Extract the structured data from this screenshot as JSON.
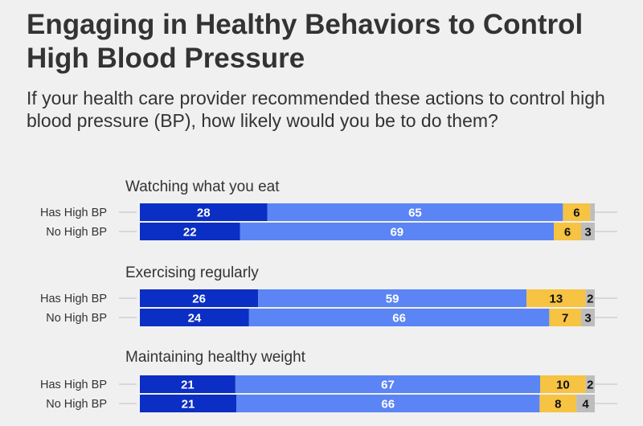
{
  "title": "Engaging in Healthy Behaviors to Control High Blood Pressure",
  "subtitle": "If your health care provider recommended these actions to control high blood pressure (BP), how likely would you be to do them?",
  "chart_data": {
    "type": "bar",
    "orientation": "horizontal",
    "stacked": true,
    "percent": true,
    "segments": [
      {
        "color": "#0b2ec4",
        "label_color": "#ffffff"
      },
      {
        "color": "#5b84f5",
        "label_color": "#ffffff"
      },
      {
        "color": "#f6c342",
        "label_color": "#111111"
      },
      {
        "color": "#bdbdbd",
        "label_color": "#111111"
      }
    ],
    "groups": [
      {
        "title": "Watching what you eat",
        "rows": [
          {
            "label": "Has High BP",
            "values": [
              28,
              65,
              6,
              1
            ],
            "labels": [
              "28",
              "65",
              "6",
              ""
            ]
          },
          {
            "label": "No High BP",
            "values": [
              22,
              69,
              6,
              3
            ],
            "labels": [
              "22",
              "69",
              "6",
              "3"
            ]
          }
        ]
      },
      {
        "title": "Exercising regularly",
        "rows": [
          {
            "label": "Has High BP",
            "values": [
              26,
              59,
              13,
              2
            ],
            "labels": [
              "26",
              "59",
              "13",
              "2"
            ]
          },
          {
            "label": "No High BP",
            "values": [
              24,
              66,
              7,
              3
            ],
            "labels": [
              "24",
              "66",
              "7",
              "3"
            ]
          }
        ]
      },
      {
        "title": "Maintaining healthy weight",
        "rows": [
          {
            "label": "Has High BP",
            "values": [
              21,
              67,
              10,
              2
            ],
            "labels": [
              "21",
              "67",
              "10",
              "2"
            ]
          },
          {
            "label": "No High BP",
            "values": [
              21,
              66,
              8,
              4
            ],
            "labels": [
              "21",
              "66",
              "8",
              "4"
            ]
          }
        ]
      }
    ]
  }
}
